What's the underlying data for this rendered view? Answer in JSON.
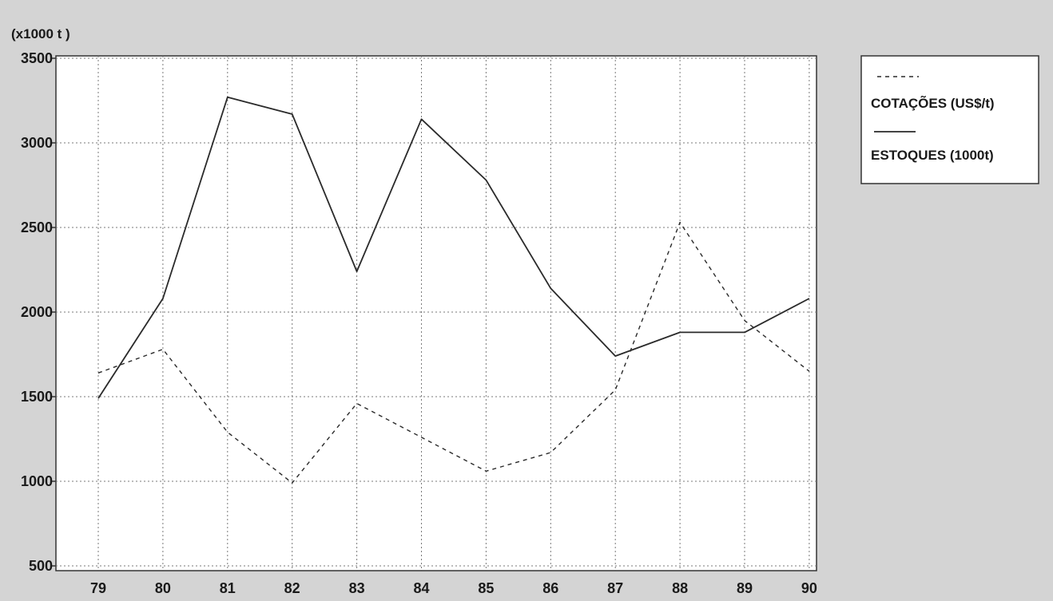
{
  "chart_data": {
    "type": "line",
    "ylabel": "(x1000 t )",
    "categories": [
      "79",
      "80",
      "81",
      "82",
      "83",
      "84",
      "85",
      "86",
      "87",
      "88",
      "89",
      "90"
    ],
    "y_ticks": [
      "3500",
      "3000",
      "2500",
      "2000",
      "1500",
      "1000",
      "500"
    ],
    "ylim": [
      500,
      3500
    ],
    "grid": true,
    "legend_position": "right",
    "series": [
      {
        "name": "COTAÇÕES (US$/t)",
        "style": "dashed",
        "color": "#2a2a2a",
        "values": [
          1640,
          1780,
          1290,
          990,
          1460,
          1260,
          1060,
          1170,
          1540,
          2530,
          1950,
          1650
        ]
      },
      {
        "name": "ESTOQUES (1000t)",
        "style": "solid",
        "color": "#2a2a2a",
        "values": [
          1490,
          2080,
          3270,
          3170,
          2240,
          3140,
          2780,
          2140,
          1740,
          1880,
          1880,
          2080
        ]
      }
    ]
  },
  "colors": {
    "background": "#d4d4d4",
    "plot_area": "#ffffff",
    "gridline": "#7a7a7a",
    "line": "#2a2a2a"
  }
}
